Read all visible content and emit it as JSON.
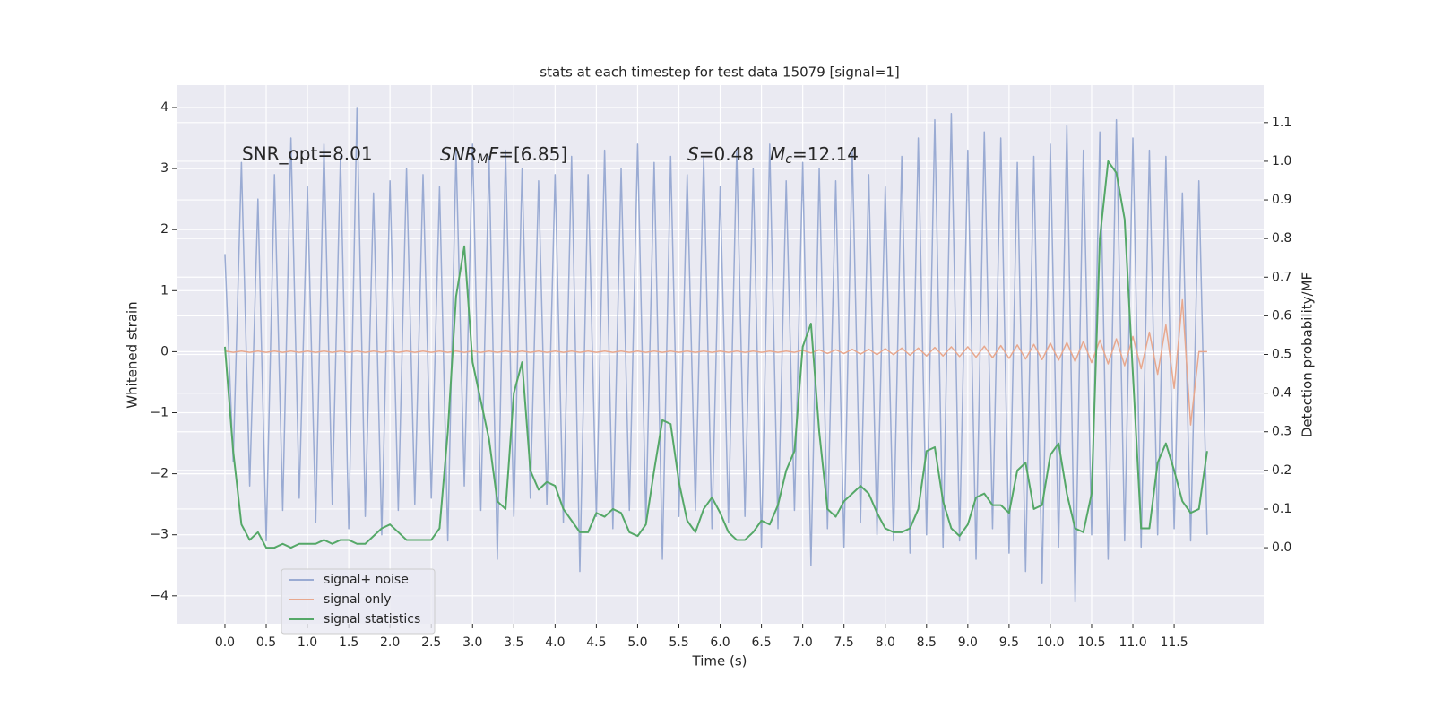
{
  "chart_data": {
    "type": "line",
    "title": "stats at each timestep for test data 15079 [signal=1]",
    "xlabel": "Time (s)",
    "ylabel": "Whitened strain",
    "y2label": "Detection probability/MF",
    "annotations": [
      {
        "text": "SNR_opt=8.01",
        "math": false
      },
      {
        "text": "SNR_MF=[6.85]",
        "math": true
      },
      {
        "text": "S=0.48",
        "math": true
      },
      {
        "text": "M_c=12.14",
        "math": true
      }
    ],
    "x": [
      0,
      0.1,
      0.2,
      0.3,
      0.4,
      0.5,
      0.6,
      0.7,
      0.8,
      0.9,
      1,
      1.1,
      1.2,
      1.3,
      1.4,
      1.5,
      1.6,
      1.7,
      1.8,
      1.9,
      2,
      2.1,
      2.2,
      2.3,
      2.4,
      2.5,
      2.6,
      2.7,
      2.8,
      2.9,
      3,
      3.1,
      3.2,
      3.3,
      3.4,
      3.5,
      3.6,
      3.7,
      3.8,
      3.9,
      4,
      4.1,
      4.2,
      4.3,
      4.4,
      4.5,
      4.6,
      4.7,
      4.8,
      4.9,
      5,
      5.1,
      5.2,
      5.3,
      5.4,
      5.5,
      5.6,
      5.7,
      5.8,
      5.9,
      6,
      6.1,
      6.2,
      6.3,
      6.4,
      6.5,
      6.6,
      6.7,
      6.8,
      6.9,
      7,
      7.1,
      7.2,
      7.3,
      7.4,
      7.5,
      7.6,
      7.7,
      7.8,
      7.9,
      8,
      8.1,
      8.2,
      8.3,
      8.4,
      8.5,
      8.6,
      8.7,
      8.8,
      8.9,
      9,
      9.1,
      9.2,
      9.3,
      9.4,
      9.5,
      9.6,
      9.7,
      9.8,
      9.9,
      10,
      10.1,
      10.2,
      10.3,
      10.4,
      10.5,
      10.6,
      10.7,
      10.8,
      10.9,
      11,
      11.1,
      11.2,
      11.3,
      11.4,
      11.5,
      11.6,
      11.7,
      11.8,
      11.9
    ],
    "series": [
      {
        "name": "signal+ noise",
        "color": "#9aabd3",
        "axis": "y",
        "values": [
          1.6,
          -1.8,
          3.1,
          -2.2,
          2.5,
          -3.1,
          2.9,
          -2.6,
          3.5,
          -2.4,
          2.7,
          -2.8,
          3.4,
          -2.5,
          3.2,
          -2.9,
          4.0,
          -2.7,
          2.6,
          -3.0,
          2.8,
          -2.6,
          3.0,
          -2.5,
          2.9,
          -2.4,
          2.7,
          -3.1,
          3.3,
          -2.2,
          3.4,
          -2.6,
          3.2,
          -3.4,
          3.3,
          -2.7,
          3.0,
          -2.4,
          2.8,
          -2.5,
          2.9,
          -2.8,
          3.2,
          -3.6,
          2.9,
          -2.7,
          3.3,
          -2.9,
          3.0,
          -2.6,
          3.4,
          -2.8,
          3.1,
          -3.4,
          3.2,
          -2.7,
          2.9,
          -2.6,
          3.2,
          -2.9,
          2.7,
          -2.8,
          3.3,
          -2.7,
          3.0,
          -3.2,
          3.4,
          -2.9,
          2.8,
          -2.6,
          3.1,
          -3.5,
          3.0,
          -2.9,
          2.8,
          -3.2,
          3.3,
          -2.8,
          2.9,
          -3.0,
          2.7,
          -3.1,
          3.2,
          -3.3,
          3.5,
          -3.0,
          3.8,
          -3.2,
          3.9,
          -3.1,
          3.3,
          -3.4,
          3.6,
          -2.9,
          3.5,
          -3.3,
          3.1,
          -3.6,
          3.2,
          -3.8,
          3.4,
          -3.2,
          3.7,
          -4.1,
          3.3,
          -3.0,
          3.6,
          -3.4,
          3.8,
          -3.1,
          3.5,
          -3.2,
          3.3,
          -3.0,
          3.2,
          -2.9,
          2.6,
          -3.1,
          2.8,
          -3.0
        ]
      },
      {
        "name": "signal only",
        "color": "#e8a88e",
        "axis": "y",
        "values": [
          0.01,
          -0.01,
          0.01,
          -0.01,
          0.01,
          -0.01,
          0.01,
          -0.01,
          0.01,
          -0.01,
          0.01,
          -0.01,
          0.01,
          -0.01,
          0.01,
          -0.01,
          0.01,
          -0.01,
          0.01,
          -0.01,
          0.01,
          -0.01,
          0.01,
          -0.01,
          0.01,
          -0.01,
          0.01,
          -0.01,
          0.01,
          -0.01,
          0.01,
          -0.01,
          0.01,
          -0.01,
          0.01,
          -0.01,
          0.01,
          -0.01,
          0.01,
          -0.01,
          0.01,
          -0.01,
          0.01,
          -0.01,
          0.01,
          -0.01,
          0.01,
          -0.01,
          0.01,
          -0.01,
          0.01,
          -0.01,
          0.01,
          -0.01,
          0.01,
          -0.01,
          0.01,
          -0.01,
          0.01,
          -0.01,
          0.01,
          -0.01,
          0.01,
          -0.01,
          0.01,
          -0.01,
          0.01,
          -0.01,
          0.01,
          -0.01,
          0.02,
          -0.02,
          0.03,
          -0.03,
          0.03,
          -0.03,
          0.04,
          -0.04,
          0.04,
          -0.05,
          0.05,
          -0.05,
          0.06,
          -0.06,
          0.06,
          -0.07,
          0.07,
          -0.07,
          0.08,
          -0.08,
          0.08,
          -0.09,
          0.09,
          -0.1,
          0.1,
          -0.11,
          0.11,
          -0.12,
          0.12,
          -0.13,
          0.14,
          -0.14,
          0.15,
          -0.16,
          0.17,
          -0.18,
          0.19,
          -0.2,
          0.21,
          -0.23,
          0.25,
          -0.28,
          0.32,
          -0.37,
          0.44,
          -0.6,
          0.85,
          -1.2,
          0,
          0
        ]
      },
      {
        "name": "signal statistics",
        "color": "#55a868",
        "axis": "y2",
        "values": [
          0.52,
          0.25,
          0.06,
          0.02,
          0.04,
          0.0,
          0.0,
          0.01,
          0.0,
          0.01,
          0.01,
          0.01,
          0.02,
          0.01,
          0.02,
          0.02,
          0.01,
          0.01,
          0.03,
          0.05,
          0.06,
          0.04,
          0.02,
          0.02,
          0.02,
          0.02,
          0.05,
          0.3,
          0.65,
          0.78,
          0.48,
          0.38,
          0.28,
          0.12,
          0.1,
          0.4,
          0.48,
          0.2,
          0.15,
          0.17,
          0.16,
          0.1,
          0.07,
          0.04,
          0.04,
          0.09,
          0.08,
          0.1,
          0.09,
          0.04,
          0.03,
          0.06,
          0.2,
          0.33,
          0.32,
          0.17,
          0.07,
          0.04,
          0.1,
          0.13,
          0.09,
          0.04,
          0.02,
          0.02,
          0.04,
          0.07,
          0.06,
          0.11,
          0.2,
          0.25,
          0.52,
          0.58,
          0.3,
          0.1,
          0.08,
          0.12,
          0.14,
          0.16,
          0.14,
          0.09,
          0.05,
          0.04,
          0.04,
          0.05,
          0.1,
          0.25,
          0.26,
          0.12,
          0.05,
          0.03,
          0.06,
          0.13,
          0.14,
          0.11,
          0.11,
          0.09,
          0.2,
          0.22,
          0.1,
          0.11,
          0.24,
          0.27,
          0.14,
          0.05,
          0.04,
          0.14,
          0.8,
          1.0,
          0.97,
          0.85,
          0.45,
          0.05,
          0.05,
          0.22,
          0.27,
          0.2,
          0.12,
          0.09,
          0.1,
          0.25
        ]
      }
    ],
    "xlim": [
      -0.586,
      12.585
    ],
    "xticks": [
      {
        "value": 0,
        "label": "0.0"
      },
      0.5,
      {
        "value": 1,
        "label": "1.0"
      },
      1.5,
      {
        "value": 2,
        "label": "2.0"
      },
      2.5,
      {
        "value": 3,
        "label": "3.0"
      },
      3.5,
      {
        "value": 4,
        "label": "4.0"
      },
      4.5,
      {
        "value": 5,
        "label": "5.0"
      },
      5.5,
      {
        "value": 6,
        "label": "6.0"
      },
      6.5,
      {
        "value": 7,
        "label": "7.0"
      },
      7.5,
      {
        "value": 8,
        "label": "8.0"
      },
      8.5,
      {
        "value": 9,
        "label": "9.0"
      },
      9.5,
      {
        "value": 10,
        "label": "10.0"
      },
      10.5,
      {
        "value": 11,
        "label": "11.0"
      },
      11.5
    ],
    "ylim": [
      -4.458,
      4.367
    ],
    "yticks": [
      {
        "value": -4,
        "label": "−4"
      },
      {
        "value": -3,
        "label": "−3"
      },
      {
        "value": -2,
        "label": "−2"
      },
      {
        "value": -1,
        "label": "−1"
      },
      0,
      1,
      2,
      3,
      4
    ],
    "y2lim": [
      -0.197,
      1.197
    ],
    "y2ticks": [
      {
        "value": 0,
        "label": "0.0"
      },
      0.1,
      0.2,
      0.3,
      0.4,
      0.5,
      0.6,
      0.7,
      0.8,
      0.9,
      {
        "value": 1,
        "label": "1.0"
      },
      1.1
    ],
    "grid": true,
    "legend": "lower left"
  }
}
